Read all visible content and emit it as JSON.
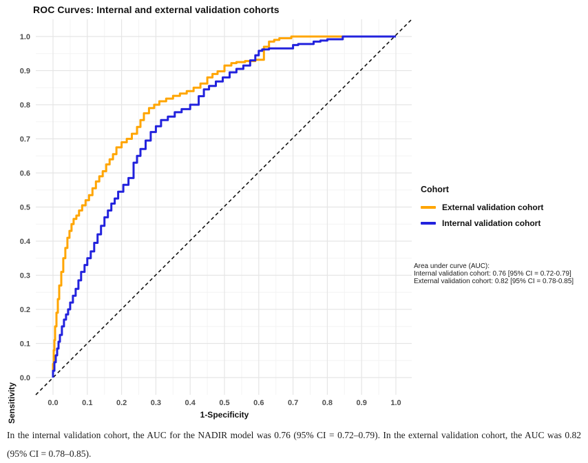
{
  "figure": {
    "title": "ROC Curves: Internal and external validation cohorts",
    "xlabel": "1-Specificity",
    "ylabel": "Sensitivity"
  },
  "legend": {
    "title": "Cohort",
    "items": [
      {
        "label": "External validation cohort",
        "color": "#FFA500"
      },
      {
        "label": "Internal validation cohort",
        "color": "#2222DD"
      }
    ]
  },
  "annotation": {
    "lines": [
      "Area under curve (AUC):",
      "Internal validation cohort: 0.76 [95% CI = 0.72-0.79]",
      "External validation cohort: 0.82 [95% CI = 0.78-0.85]"
    ]
  },
  "caption": "In the internal validation cohort, the AUC for the NADIR model was 0.76 (95% CI = 0.72–0.79). In the external validation cohort, the AUC was 0.82 (95% CI = 0.78–0.85).",
  "colors": {
    "external_curve": "#FFA500",
    "internal_curve": "#2222DD",
    "reference_line": "#111111",
    "grid_major": "#E5E5E5",
    "grid_minor": "#F3F3F3",
    "tick_label": "#4D4D4D"
  },
  "chart_data": {
    "type": "line",
    "title": "ROC Curves: Internal and external validation cohorts",
    "xlabel": "1-Specificity",
    "ylabel": "Sensitivity",
    "xlim": [
      0,
      1
    ],
    "ylim": [
      0,
      1
    ],
    "xticks": [
      0.0,
      0.1,
      0.2,
      0.3,
      0.4,
      0.5,
      0.6,
      0.7,
      0.8,
      0.9,
      1.0
    ],
    "yticks": [
      0.0,
      0.1,
      0.2,
      0.3,
      0.4,
      0.5,
      0.6,
      0.7,
      0.8,
      0.9,
      1.0
    ],
    "grid": true,
    "legend_position": "right",
    "reference_line": {
      "style": "dashed",
      "from": [
        0,
        0
      ],
      "to": [
        1,
        1
      ]
    },
    "series": [
      {
        "name": "External validation cohort",
        "color": "#FFA500",
        "auc": "0.82 [95% CI = 0.78-0.85]",
        "points": [
          [
            0,
            0
          ],
          [
            0.002,
            0.04
          ],
          [
            0.004,
            0.08
          ],
          [
            0.006,
            0.11
          ],
          [
            0.01,
            0.15
          ],
          [
            0.014,
            0.19
          ],
          [
            0.018,
            0.23
          ],
          [
            0.024,
            0.27
          ],
          [
            0.03,
            0.31
          ],
          [
            0.036,
            0.35
          ],
          [
            0.042,
            0.38
          ],
          [
            0.048,
            0.41
          ],
          [
            0.054,
            0.43
          ],
          [
            0.06,
            0.45
          ],
          [
            0.068,
            0.465
          ],
          [
            0.076,
            0.475
          ],
          [
            0.085,
            0.49
          ],
          [
            0.095,
            0.505
          ],
          [
            0.105,
            0.52
          ],
          [
            0.115,
            0.535
          ],
          [
            0.125,
            0.555
          ],
          [
            0.135,
            0.575
          ],
          [
            0.145,
            0.59
          ],
          [
            0.155,
            0.605
          ],
          [
            0.165,
            0.625
          ],
          [
            0.175,
            0.64
          ],
          [
            0.185,
            0.655
          ],
          [
            0.2,
            0.675
          ],
          [
            0.215,
            0.69
          ],
          [
            0.23,
            0.7
          ],
          [
            0.245,
            0.715
          ],
          [
            0.255,
            0.735
          ],
          [
            0.265,
            0.755
          ],
          [
            0.28,
            0.775
          ],
          [
            0.295,
            0.79
          ],
          [
            0.31,
            0.8
          ],
          [
            0.33,
            0.81
          ],
          [
            0.35,
            0.818
          ],
          [
            0.37,
            0.826
          ],
          [
            0.39,
            0.833
          ],
          [
            0.41,
            0.84
          ],
          [
            0.43,
            0.85
          ],
          [
            0.45,
            0.862
          ],
          [
            0.465,
            0.88
          ],
          [
            0.48,
            0.89
          ],
          [
            0.5,
            0.898
          ],
          [
            0.52,
            0.915
          ],
          [
            0.535,
            0.922
          ],
          [
            0.56,
            0.925
          ],
          [
            0.59,
            0.928
          ],
          [
            0.615,
            0.932
          ],
          [
            0.63,
            0.97
          ],
          [
            0.645,
            0.985
          ],
          [
            0.66,
            0.99
          ],
          [
            0.695,
            0.995
          ],
          [
            0.71,
            1.0
          ],
          [
            1.0,
            1.0
          ]
        ]
      },
      {
        "name": "Internal validation cohort",
        "color": "#2222DD",
        "auc": "0.76 [95% CI = 0.72-0.79]",
        "points": [
          [
            0,
            0
          ],
          [
            0.004,
            0.02
          ],
          [
            0.008,
            0.045
          ],
          [
            0.012,
            0.065
          ],
          [
            0.016,
            0.085
          ],
          [
            0.02,
            0.105
          ],
          [
            0.026,
            0.125
          ],
          [
            0.032,
            0.15
          ],
          [
            0.038,
            0.17
          ],
          [
            0.044,
            0.185
          ],
          [
            0.05,
            0.2
          ],
          [
            0.058,
            0.22
          ],
          [
            0.066,
            0.24
          ],
          [
            0.074,
            0.26
          ],
          [
            0.082,
            0.285
          ],
          [
            0.092,
            0.31
          ],
          [
            0.1,
            0.33
          ],
          [
            0.11,
            0.35
          ],
          [
            0.12,
            0.37
          ],
          [
            0.13,
            0.395
          ],
          [
            0.14,
            0.42
          ],
          [
            0.15,
            0.445
          ],
          [
            0.16,
            0.47
          ],
          [
            0.17,
            0.49
          ],
          [
            0.18,
            0.51
          ],
          [
            0.19,
            0.525
          ],
          [
            0.205,
            0.545
          ],
          [
            0.22,
            0.565
          ],
          [
            0.235,
            0.585
          ],
          [
            0.245,
            0.63
          ],
          [
            0.255,
            0.65
          ],
          [
            0.27,
            0.67
          ],
          [
            0.285,
            0.695
          ],
          [
            0.3,
            0.72
          ],
          [
            0.315,
            0.737
          ],
          [
            0.335,
            0.755
          ],
          [
            0.355,
            0.765
          ],
          [
            0.375,
            0.778
          ],
          [
            0.4,
            0.787
          ],
          [
            0.425,
            0.8
          ],
          [
            0.44,
            0.825
          ],
          [
            0.455,
            0.845
          ],
          [
            0.475,
            0.855
          ],
          [
            0.495,
            0.868
          ],
          [
            0.515,
            0.88
          ],
          [
            0.535,
            0.895
          ],
          [
            0.555,
            0.905
          ],
          [
            0.575,
            0.915
          ],
          [
            0.59,
            0.93
          ],
          [
            0.6,
            0.945
          ],
          [
            0.61,
            0.958
          ],
          [
            0.63,
            0.962
          ],
          [
            0.7,
            0.965
          ],
          [
            0.715,
            0.975
          ],
          [
            0.76,
            0.978
          ],
          [
            0.78,
            0.985
          ],
          [
            0.8,
            0.988
          ],
          [
            0.845,
            0.992
          ],
          [
            0.87,
            1.0
          ],
          [
            1.0,
            1.0
          ]
        ]
      }
    ]
  }
}
